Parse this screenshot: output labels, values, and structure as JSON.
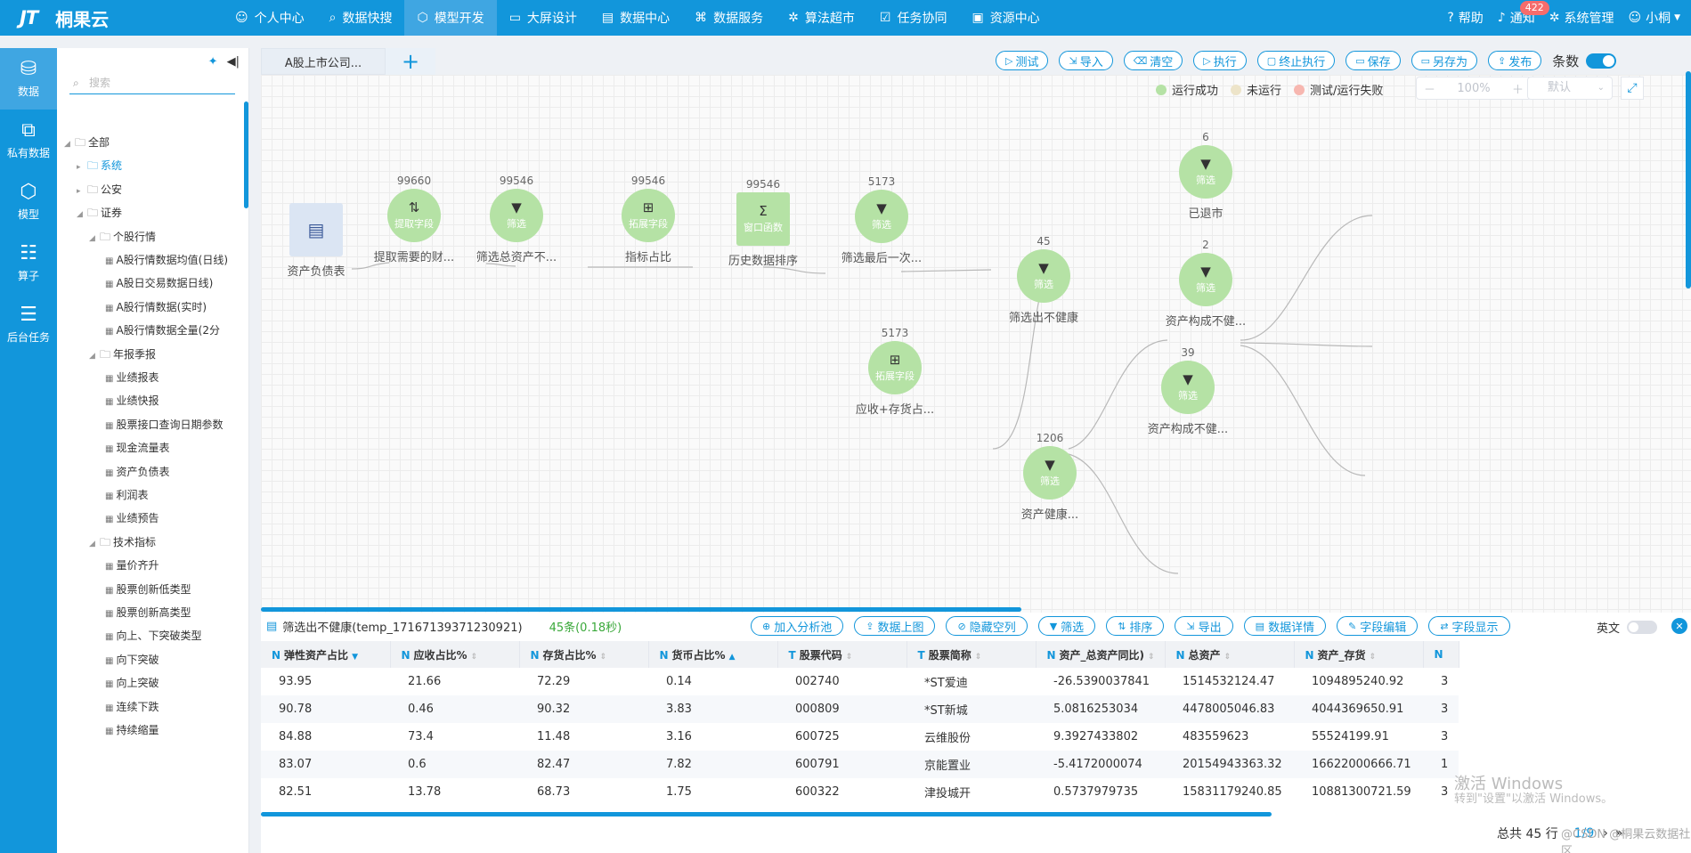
{
  "app": {
    "logo_mark": "JT",
    "name": "桐果云"
  },
  "nav": [
    {
      "icon": "user-icon",
      "glyph": "☺",
      "label": "个人中心"
    },
    {
      "icon": "search-icon",
      "glyph": "⌕",
      "label": "数据快搜"
    },
    {
      "icon": "cube-icon",
      "glyph": "⬡",
      "label": "模型开发",
      "active": true
    },
    {
      "icon": "monitor-icon",
      "glyph": "▭",
      "label": "大屏设计"
    },
    {
      "icon": "database-icon",
      "glyph": "▤",
      "label": "数据中心"
    },
    {
      "icon": "service-icon",
      "glyph": "⌘",
      "label": "数据服务"
    },
    {
      "icon": "gear-icon",
      "glyph": "✲",
      "label": "算法超市"
    },
    {
      "icon": "task-icon",
      "glyph": "☑",
      "label": "任务协同"
    },
    {
      "icon": "resource-icon",
      "glyph": "▣",
      "label": "资源中心"
    }
  ],
  "right_nav": {
    "help": "帮助",
    "notify": "通知",
    "notify_count": "422",
    "system": "系统管理",
    "user": "小桐"
  },
  "left_bar": [
    {
      "icon": "database-icon",
      "glyph": "⛁",
      "label": "数据",
      "active": true
    },
    {
      "icon": "private-data-icon",
      "glyph": "⧉",
      "label": "私有数据"
    },
    {
      "icon": "model-icon",
      "glyph": "⬡",
      "label": "模型"
    },
    {
      "icon": "operator-icon",
      "glyph": "☷",
      "label": "算子"
    },
    {
      "icon": "task-list-icon",
      "glyph": "☰",
      "label": "后台任务"
    }
  ],
  "tree": {
    "search_placeholder": "搜索",
    "items": [
      {
        "label": "全部",
        "level": 0,
        "open": true
      },
      {
        "label": "系统",
        "level": 1,
        "blue": true
      },
      {
        "label": "公安",
        "level": 1
      },
      {
        "label": "证券",
        "level": 1,
        "open": true
      },
      {
        "label": "个股行情",
        "level": 2,
        "open": true
      },
      {
        "label": "A股行情数据均值(日线)",
        "level": 3
      },
      {
        "label": "A股日交易数据日线)",
        "level": 3
      },
      {
        "label": "A股行情数据(实时)",
        "level": 3
      },
      {
        "label": "A股行情数据全量(2分",
        "level": 3
      },
      {
        "label": "年报季报",
        "level": 2,
        "open": true
      },
      {
        "label": "业绩报表",
        "level": 3
      },
      {
        "label": "业绩快报",
        "level": 3
      },
      {
        "label": "股票接口查询日期参数",
        "level": 3
      },
      {
        "label": "现金流量表",
        "level": 3
      },
      {
        "label": "资产负债表",
        "level": 3
      },
      {
        "label": "利润表",
        "level": 3
      },
      {
        "label": "业绩预告",
        "level": 3
      },
      {
        "label": "技术指标",
        "level": 2,
        "open": true
      },
      {
        "label": "量价齐升",
        "level": 3
      },
      {
        "label": "股票创新低类型",
        "level": 3
      },
      {
        "label": "股票创新高类型",
        "level": 3
      },
      {
        "label": "向上、下突破类型",
        "level": 3
      },
      {
        "label": "向下突破",
        "level": 3
      },
      {
        "label": "向上突破",
        "level": 3
      },
      {
        "label": "连续下跌",
        "level": 3
      },
      {
        "label": "持续缩量",
        "level": 3
      }
    ]
  },
  "tabs": {
    "active": "A股上市公司...",
    "add": "+"
  },
  "toolbar": {
    "buttons": [
      {
        "icon": "play-icon",
        "glyph": "▷",
        "label": "测试"
      },
      {
        "icon": "import-icon",
        "glyph": "⇲",
        "label": "导入"
      },
      {
        "icon": "trash-icon",
        "glyph": "⌫",
        "label": "清空"
      },
      {
        "icon": "run-icon",
        "glyph": "▷",
        "label": "执行"
      },
      {
        "icon": "stop-icon",
        "glyph": "▢",
        "label": "终止执行"
      },
      {
        "icon": "save-icon",
        "glyph": "▭",
        "label": "保存"
      },
      {
        "icon": "save-as-icon",
        "glyph": "▭",
        "label": "另存为"
      },
      {
        "icon": "publish-icon",
        "glyph": "⇪",
        "label": "发布"
      }
    ],
    "toggle_label": "条数"
  },
  "legend": [
    {
      "label": "运行成功",
      "color": "#b5e2a5"
    },
    {
      "label": "未运行",
      "color": "#ede4c9"
    },
    {
      "label": "测试/运行失败",
      "color": "#f7b7b0"
    }
  ],
  "zoom": {
    "minus": "－",
    "value": "100%",
    "plus": "＋"
  },
  "layout_select": {
    "value": "默认"
  },
  "nodes": [
    {
      "id": "n0",
      "count": "",
      "kind": "source",
      "glyph": "▤",
      "sub": "",
      "label": "资产负债表"
    },
    {
      "id": "n1",
      "count": "99660",
      "kind": "circle",
      "glyph": "⇅",
      "sub": "提取字段",
      "label": "提取需要的财..."
    },
    {
      "id": "n2",
      "count": "99546",
      "kind": "circle",
      "glyph": "▼",
      "sub": "筛选",
      "label": "筛选总资产不..."
    },
    {
      "id": "n3",
      "count": "99546",
      "kind": "circle",
      "glyph": "⊞",
      "sub": "拓展字段",
      "label": "指标占比"
    },
    {
      "id": "n4",
      "count": "99546",
      "kind": "square",
      "glyph": "Σ",
      "sub": "窗口函数",
      "label": "历史数据排序"
    },
    {
      "id": "n5",
      "count": "5173",
      "kind": "circle",
      "glyph": "▼",
      "sub": "筛选",
      "label": "筛选最后一次..."
    },
    {
      "id": "n6",
      "count": "5173",
      "kind": "circle",
      "glyph": "⊞",
      "sub": "拓展字段",
      "label": "应收+存货占..."
    },
    {
      "id": "n7",
      "count": "45",
      "kind": "circle",
      "glyph": "▼",
      "sub": "筛选",
      "label": "筛选出不健康"
    },
    {
      "id": "n8",
      "count": "1206",
      "kind": "circle",
      "glyph": "▼",
      "sub": "筛选",
      "label": "资产健康..."
    },
    {
      "id": "n9",
      "count": "6",
      "kind": "circle",
      "glyph": "▼",
      "sub": "筛选",
      "label": "已退市"
    },
    {
      "id": "n10",
      "count": "2",
      "kind": "circle",
      "glyph": "▼",
      "sub": "筛选",
      "label": "资产构成不健..."
    },
    {
      "id": "n11",
      "count": "39",
      "kind": "circle",
      "glyph": "▼",
      "sub": "筛选",
      "label": "资产构成不健..."
    }
  ],
  "panel": {
    "title": "筛选出不健康(temp_17167139371230921)",
    "count": "45条(0.18秒)",
    "buttons": [
      {
        "icon": "add-circle-icon",
        "glyph": "⊕",
        "label": "加入分析池"
      },
      {
        "icon": "upload-icon",
        "glyph": "⇪",
        "label": "数据上图"
      },
      {
        "icon": "hide-icon",
        "glyph": "⊘",
        "label": "隐藏空列"
      },
      {
        "icon": "filter-icon",
        "glyph": "▼",
        "label": "筛选"
      },
      {
        "icon": "sort-icon",
        "glyph": "⇅",
        "label": "排序"
      },
      {
        "icon": "export-icon",
        "glyph": "⇲",
        "label": "导出"
      },
      {
        "icon": "detail-icon",
        "glyph": "▤",
        "label": "数据详情"
      },
      {
        "icon": "edit-icon",
        "glyph": "✎",
        "label": "字段编辑"
      },
      {
        "icon": "display-icon",
        "glyph": "⇄",
        "label": "字段显示"
      }
    ],
    "english_label": "英文",
    "close": "✕",
    "columns": [
      {
        "type": "N",
        "label": "弹性资产占比",
        "sort": "desc"
      },
      {
        "type": "N",
        "label": "应收占比%",
        "sort": "none"
      },
      {
        "type": "N",
        "label": "存货占比%",
        "sort": "none"
      },
      {
        "type": "N",
        "label": "货币占比%",
        "sort": "asc"
      },
      {
        "type": "T",
        "label": "股票代码",
        "sort": "none"
      },
      {
        "type": "T",
        "label": "股票简称",
        "sort": "none"
      },
      {
        "type": "N",
        "label": "资产_总资产同比)",
        "sort": "none"
      },
      {
        "type": "N",
        "label": "总资产",
        "sort": "none"
      },
      {
        "type": "N",
        "label": "资产_存货",
        "sort": "none"
      },
      {
        "type": "N",
        "label": "",
        "sort": "none"
      }
    ],
    "rows": [
      [
        "93.95",
        "21.66",
        "72.29",
        "0.14",
        "002740",
        "*ST爱迪",
        "-26.5390037841",
        "1514532124.47",
        "1094895240.92",
        "3"
      ],
      [
        "90.78",
        "0.46",
        "90.32",
        "3.83",
        "000809",
        "*ST新城",
        "5.0816253034",
        "4478005046.83",
        "4044369650.91",
        "3"
      ],
      [
        "84.88",
        "73.4",
        "11.48",
        "3.16",
        "600725",
        "云维股份",
        "9.3927433802",
        "483559623",
        "55524199.91",
        "3"
      ],
      [
        "83.07",
        "0.6",
        "82.47",
        "7.82",
        "600791",
        "京能置业",
        "-5.4172000074",
        "20154943363.32",
        "16622000666.71",
        "1"
      ],
      [
        "82.51",
        "13.78",
        "68.73",
        "1.75",
        "600322",
        "津投城开",
        "0.5737979735",
        "15831179240.85",
        "10881300721.59",
        "3"
      ]
    ],
    "total": "总共 45 行",
    "page": "1/9",
    "watermark": "激活 Windows",
    "watermark_sub": "转到\"设置\"以激活 Windows。",
    "watermark_csdn": "@CSDN @桐果云数据社区"
  }
}
